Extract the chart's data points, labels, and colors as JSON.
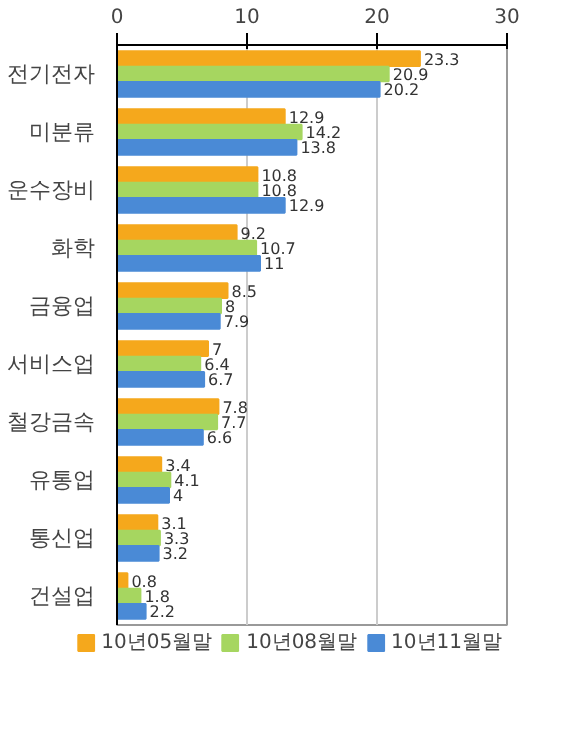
{
  "chart_data": {
    "type": "bar",
    "orientation": "horizontal",
    "categories": [
      "전기전자",
      "미분류",
      "운수장비",
      "화학",
      "금융업",
      "서비스업",
      "철강금속",
      "유통업",
      "통신업",
      "건설업"
    ],
    "series": [
      {
        "name": "10년05월말",
        "color": "#f5a81c",
        "values": [
          23.3,
          12.9,
          10.8,
          9.2,
          8.5,
          7,
          7.8,
          3.4,
          3.1,
          0.8
        ]
      },
      {
        "name": "10년08월말",
        "color": "#a6d660",
        "values": [
          20.9,
          14.2,
          10.8,
          10.7,
          8,
          6.4,
          7.7,
          4.1,
          3.3,
          1.8
        ]
      },
      {
        "name": "10년11월말",
        "color": "#4a8ad6",
        "values": [
          20.2,
          13.8,
          12.9,
          11,
          7.9,
          6.7,
          6.6,
          4,
          3.2,
          2.2
        ]
      }
    ],
    "xlim": [
      0,
      30
    ],
    "xticks": [
      0,
      10,
      20,
      30
    ],
    "grid": "x",
    "legend": "bottom",
    "data_labels": true
  }
}
